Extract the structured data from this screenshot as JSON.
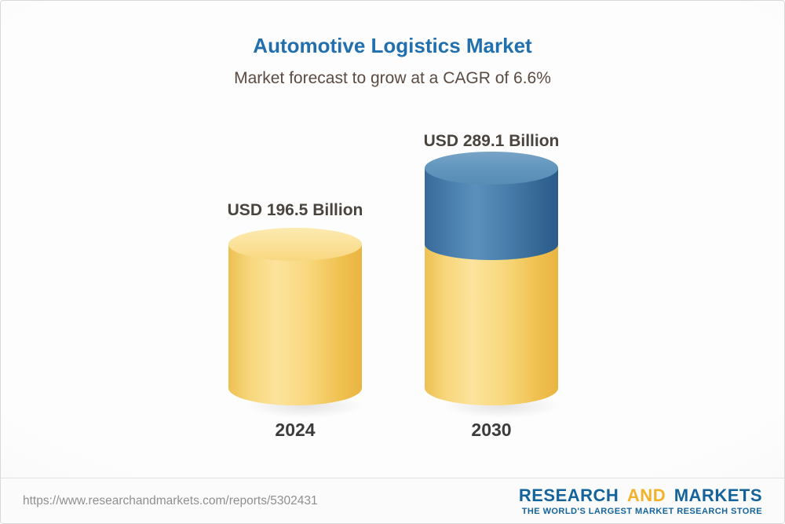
{
  "chart_data": {
    "type": "bar",
    "title": "Automotive Logistics Market",
    "subtitle": "Market forecast to grow at a CAGR of 6.6%",
    "cagr_percent": 6.6,
    "categories": [
      "2024",
      "2030"
    ],
    "values": [
      196.5,
      289.1
    ],
    "value_labels": [
      "USD 196.5 Billion",
      "USD 289.1 Billion"
    ],
    "unit": "USD Billion",
    "legend": "none",
    "grid": false,
    "bar_style": "3d-cylinder",
    "colors": {
      "base_segment": "#f6ce63",
      "growth_segment": "#3f6f9e"
    },
    "notes": "2030 cylinder is yellow up to the 2024 level (196.5) with a blue segment on top representing growth to 289.1"
  },
  "footer": {
    "url": "https://www.researchandmarkets.com/reports/5302431",
    "logo": {
      "research": "RESEARCH",
      "and": "AND",
      "markets": "MARKETS",
      "tagline": "THE WORLD'S LARGEST MARKET RESEARCH STORE"
    }
  }
}
